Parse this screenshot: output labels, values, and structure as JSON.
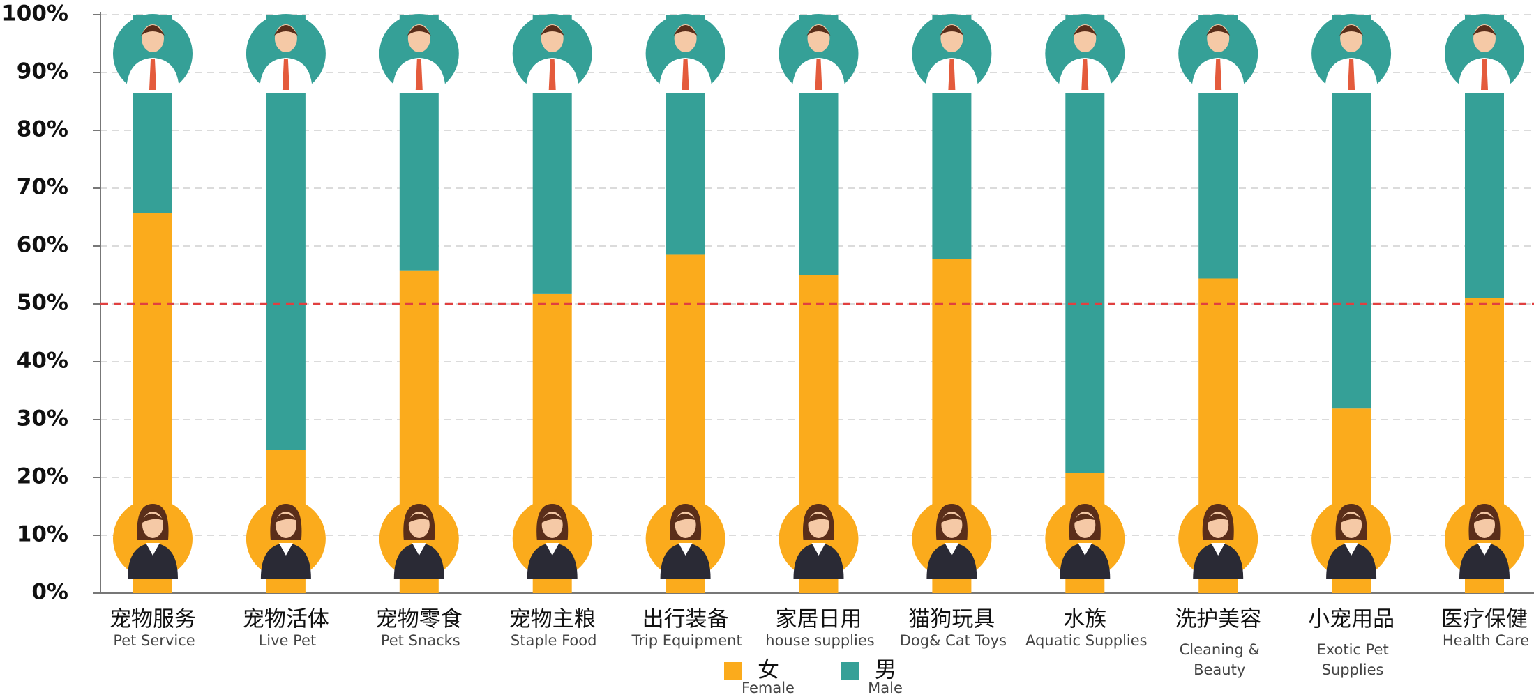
{
  "chart_data": {
    "type": "stacked_bar",
    "categories": [
      "宠物服务",
      "宠物活体",
      "宠物零食",
      "宠物主粮",
      "出行装备",
      "家居日用",
      "猫狗玩具",
      "水族",
      "洗护美容",
      "小宠用品",
      "医疗保健"
    ],
    "category_subtitles": [
      "Pet Service",
      "Live Pet",
      "Pet Snacks",
      "Staple Food",
      "Trip Equipment",
      "house supplies",
      "Dog& Cat Toys",
      "Aquatic Supplies",
      "Cleaning & Beauty",
      "Exotic Pet Supplies",
      "Health Care"
    ],
    "series": [
      {
        "name": "女",
        "subtitle": "Female",
        "color": "#fbab1c",
        "values": [
          65.7,
          24.8,
          55.7,
          51.7,
          58.5,
          55.0,
          57.8,
          20.8,
          54.4,
          31.9,
          51.0
        ]
      },
      {
        "name": "男",
        "subtitle": "Male",
        "color": "#35a097",
        "values": [
          34.3,
          75.2,
          44.3,
          48.3,
          41.5,
          45.0,
          42.2,
          79.2,
          45.6,
          68.1,
          49.0
        ]
      }
    ],
    "ylim": [
      0,
      100
    ],
    "yticks": [
      {
        "value": 0,
        "label": "0%"
      },
      {
        "value": 10,
        "label": "10%"
      },
      {
        "value": 20,
        "label": "20%"
      },
      {
        "value": 30,
        "label": "30%"
      },
      {
        "value": 40,
        "label": "40%"
      },
      {
        "value": 50,
        "label": "50%"
      },
      {
        "value": 60,
        "label": "60%"
      },
      {
        "value": 70,
        "label": "70%"
      },
      {
        "value": 80,
        "label": "80%"
      },
      {
        "value": 90,
        "label": "90%"
      },
      {
        "value": 100,
        "label": "100%"
      }
    ],
    "reference_line": 50,
    "grid": true
  }
}
